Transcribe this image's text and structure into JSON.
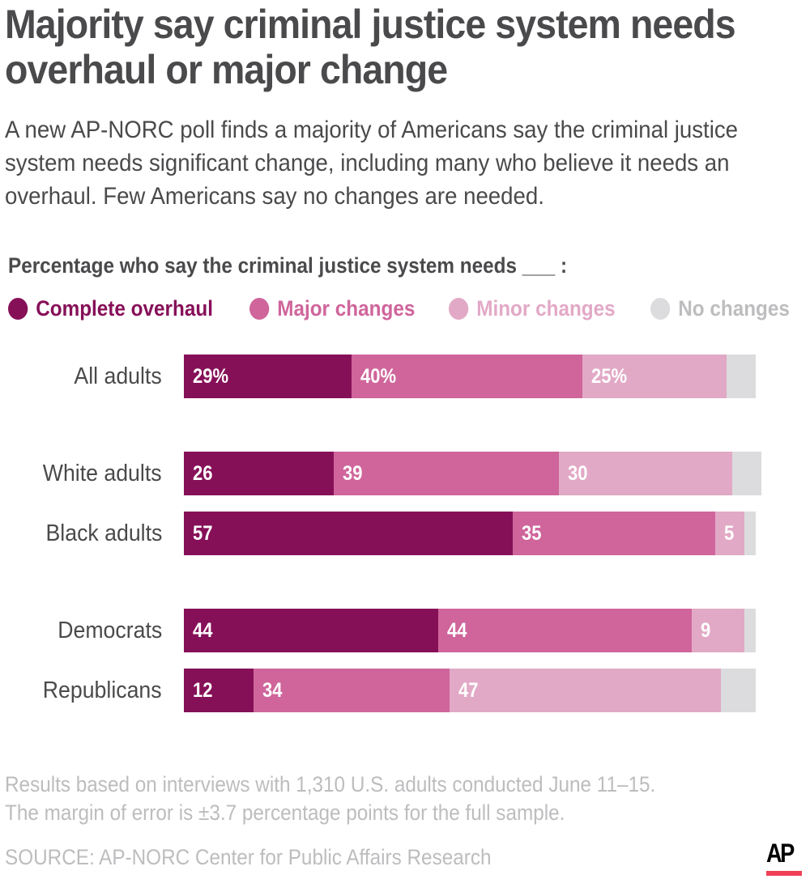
{
  "header": {
    "title": "Majority say criminal justice system needs overhaul or major change",
    "subtitle": "A new AP-NORC poll finds a majority of Americans say the criminal justice system needs significant change, including many who believe it needs an overhaul. Few Americans say no changes are needed."
  },
  "colors": {
    "complete_overhaul": "#861058",
    "major_changes": "#cf659b",
    "minor_changes": "#e2a9c6",
    "no_changes": "#dcdcde",
    "text_dark": "#4a4a4c",
    "text_muted": "#bdbdbf",
    "ap_red": "#ef4056"
  },
  "chart_data": {
    "type": "bar",
    "orientation": "horizontal",
    "stacked": true,
    "title": "Percentage who say the criminal justice system needs ___ :",
    "xlabel": "",
    "ylabel": "",
    "xlim": [
      0,
      100
    ],
    "grid": false,
    "legend_position": "top-left",
    "categories": [
      "All adults",
      "White adults",
      "Black adults",
      "Democrats",
      "Republicans"
    ],
    "groups": [
      [
        0
      ],
      [
        1,
        2
      ],
      [
        3,
        4
      ]
    ],
    "series": [
      {
        "name": "Complete overhaul",
        "key": "complete_overhaul",
        "values": [
          29,
          26,
          57,
          44,
          12
        ]
      },
      {
        "name": "Major changes",
        "key": "major_changes",
        "values": [
          40,
          39,
          35,
          44,
          34
        ]
      },
      {
        "name": "Minor changes",
        "key": "minor_changes",
        "values": [
          25,
          30,
          5,
          9,
          47
        ]
      },
      {
        "name": "No changes",
        "key": "no_changes",
        "values": [
          5,
          5,
          2,
          2,
          6
        ],
        "labeled": false
      }
    ],
    "data_labels": [
      [
        "29%",
        "40%",
        "25%",
        ""
      ],
      [
        "26",
        "39",
        "30",
        ""
      ],
      [
        "57",
        "35",
        "5",
        ""
      ],
      [
        "44",
        "44",
        "9",
        ""
      ],
      [
        "12",
        "34",
        "47",
        ""
      ]
    ]
  },
  "footer": {
    "note_line1": "Results based on interviews with 1,310 U.S. adults conducted June 11–15.",
    "note_line2": "The margin of error is ±3.7 percentage points for the full sample.",
    "source": "SOURCE: AP-NORC Center for Public Affairs Research",
    "logo": "AP"
  }
}
